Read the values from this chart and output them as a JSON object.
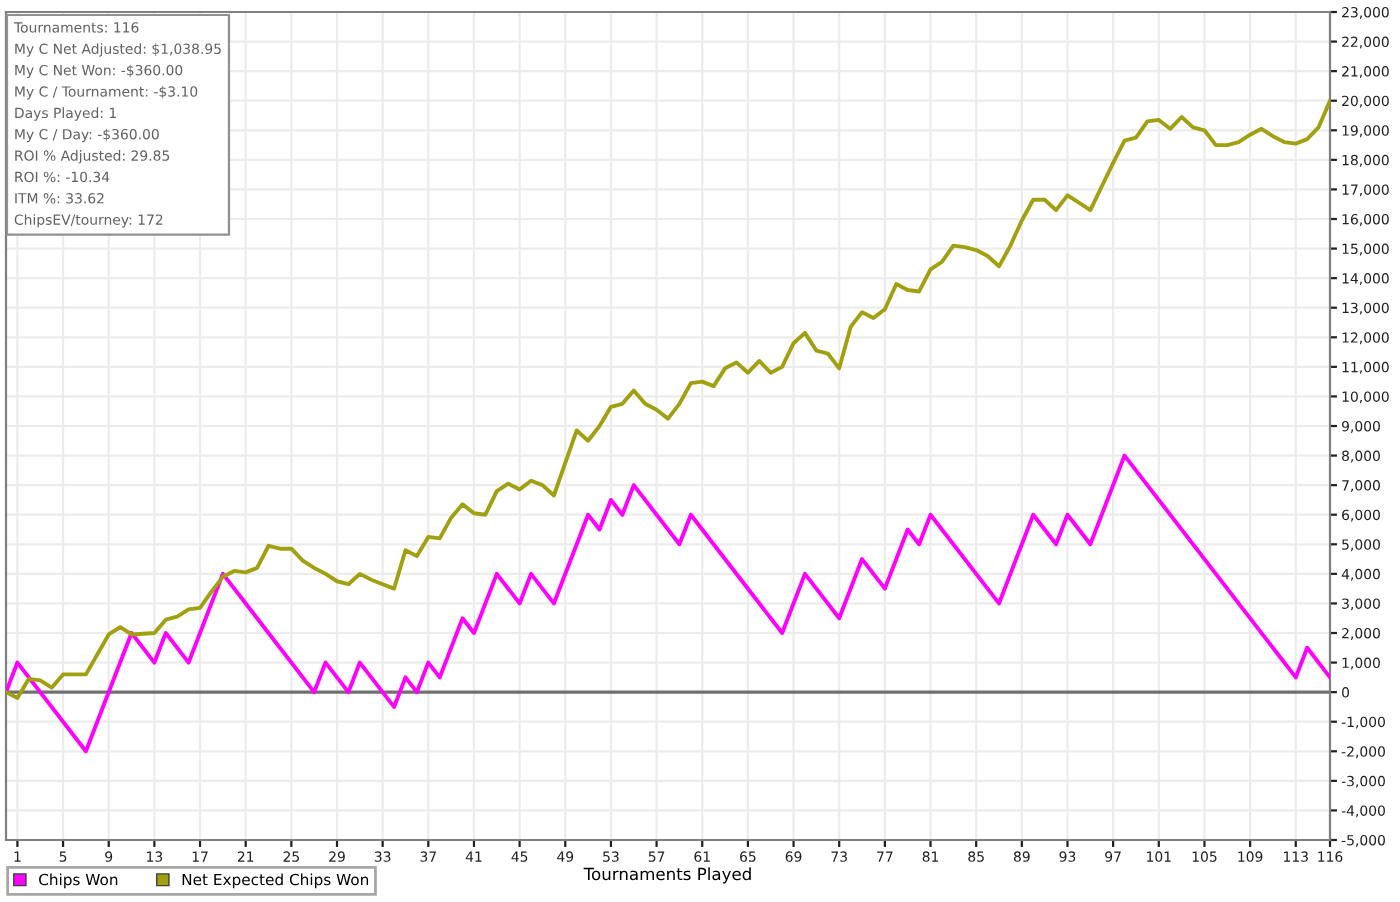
{
  "chart_data": {
    "type": "line",
    "xlabel": "Tournaments Played",
    "annotations": [
      "Tournaments: 116",
      "My C Net Adjusted: $1,038.95",
      "My C Net Won: -$360.00",
      "My C / Tournament: -$3.10",
      "Days Played: 1",
      "My C / Day: -$360.00",
      "ROI % Adjusted: 29.85",
      "ROI %: -10.34",
      "ITM %: 33.62",
      "ChipsEV/tourney: 172"
    ],
    "series": [
      {
        "name": "Chips Won",
        "color": "#ff00ff",
        "x": [
          0,
          1,
          7,
          11,
          13,
          14,
          16,
          19,
          27,
          28,
          30,
          31,
          34,
          35,
          36,
          37,
          38,
          40,
          41,
          43,
          45,
          46,
          48,
          51,
          52,
          53,
          54,
          55,
          59,
          60,
          68,
          70,
          73,
          75,
          77,
          79,
          80,
          81,
          87,
          90,
          92,
          93,
          95,
          98,
          113,
          114,
          116
        ],
        "values": [
          0,
          1000,
          -2000,
          2000,
          1000,
          2000,
          1000,
          4000,
          0,
          1000,
          0,
          1000,
          -500,
          500,
          0,
          1000,
          500,
          2500,
          2000,
          4000,
          3000,
          4000,
          3000,
          6000,
          5500,
          6500,
          6000,
          7000,
          5000,
          6000,
          2000,
          4000,
          2500,
          4500,
          3500,
          5500,
          5000,
          6000,
          3000,
          6000,
          5000,
          6000,
          5000,
          8000,
          500,
          1500,
          500
        ]
      },
      {
        "name": "Net Expected Chips Won",
        "color": "#a0a010",
        "x": [
          0,
          1,
          2,
          3,
          4,
          5,
          7,
          9,
          10,
          11,
          13,
          14,
          15,
          16,
          17,
          18,
          19,
          20,
          21,
          22,
          23,
          24,
          25,
          26,
          27,
          28,
          29,
          30,
          31,
          32,
          33,
          34,
          35,
          36,
          37,
          38,
          39,
          40,
          41,
          42,
          43,
          44,
          45,
          46,
          47,
          48,
          50,
          51,
          52,
          53,
          54,
          55,
          56,
          57,
          58,
          59,
          60,
          61,
          62,
          63,
          64,
          65,
          66,
          67,
          68,
          69,
          70,
          71,
          72,
          73,
          74,
          75,
          76,
          77,
          78,
          79,
          80,
          81,
          82,
          83,
          84,
          85,
          86,
          87,
          88,
          89,
          90,
          91,
          92,
          93,
          94,
          95,
          96,
          97,
          98,
          99,
          100,
          101,
          102,
          103,
          104,
          105,
          106,
          107,
          108,
          109,
          110,
          111,
          112,
          113,
          114,
          115,
          116
        ],
        "values": [
          0,
          -200,
          450,
          400,
          150,
          600,
          600,
          1950,
          2200,
          1950,
          2000,
          2450,
          2550,
          2800,
          2850,
          3400,
          3900,
          4100,
          4050,
          4200,
          4950,
          4850,
          4850,
          4450,
          4200,
          4000,
          3750,
          3650,
          4000,
          3800,
          3650,
          3500,
          4800,
          4600,
          5250,
          5200,
          5900,
          6350,
          6050,
          6000,
          6800,
          7050,
          6850,
          7150,
          7000,
          6650,
          8850,
          8500,
          9000,
          9650,
          9750,
          10200,
          9750,
          9550,
          9250,
          9750,
          10450,
          10500,
          10350,
          10950,
          11150,
          10800,
          11200,
          10800,
          11000,
          11800,
          12150,
          11550,
          11450,
          10950,
          12350,
          12850,
          12650,
          12950,
          13800,
          13600,
          13550,
          14300,
          14550,
          15100,
          15050,
          14950,
          14750,
          14400,
          15100,
          15950,
          16650,
          16650,
          16300,
          16800,
          16550,
          16300,
          17100,
          17900,
          18650,
          18750,
          19300,
          19350,
          19050,
          19450,
          19100,
          19000,
          18500,
          18500,
          18600,
          18850,
          19050,
          18800,
          18600,
          18550,
          18700,
          19100,
          20000
        ]
      }
    ],
    "xlim": [
      0,
      116
    ],
    "xticks": [
      1,
      5,
      9,
      13,
      17,
      21,
      25,
      29,
      33,
      37,
      41,
      45,
      49,
      53,
      57,
      61,
      65,
      69,
      73,
      77,
      81,
      85,
      89,
      93,
      97,
      101,
      105,
      109,
      113,
      116
    ],
    "ylim": [
      -5000,
      23000
    ],
    "yticks": [
      {
        "value": -5000,
        "label": "-5,000"
      },
      {
        "value": -4000,
        "label": "-4,000"
      },
      {
        "value": -3000,
        "label": "-3,000"
      },
      {
        "value": -2000,
        "label": "-2,000"
      },
      {
        "value": -1000,
        "label": "-1,000"
      },
      0,
      {
        "value": 1000,
        "label": "1,000"
      },
      {
        "value": 2000,
        "label": "2,000"
      },
      {
        "value": 3000,
        "label": "3,000"
      },
      {
        "value": 4000,
        "label": "4,000"
      },
      {
        "value": 5000,
        "label": "5,000"
      },
      {
        "value": 6000,
        "label": "6,000"
      },
      {
        "value": 7000,
        "label": "7,000"
      },
      {
        "value": 8000,
        "label": "8,000"
      },
      {
        "value": 9000,
        "label": "9,000"
      },
      {
        "value": 10000,
        "label": "10,000"
      },
      {
        "value": 11000,
        "label": "11,000"
      },
      {
        "value": 12000,
        "label": "12,000"
      },
      {
        "value": 13000,
        "label": "13,000"
      },
      {
        "value": 14000,
        "label": "14,000"
      },
      {
        "value": 15000,
        "label": "15,000"
      },
      {
        "value": 16000,
        "label": "16,000"
      },
      {
        "value": 17000,
        "label": "17,000"
      },
      {
        "value": 18000,
        "label": "18,000"
      },
      {
        "value": 19000,
        "label": "19,000"
      },
      {
        "value": 20000,
        "label": "20,000"
      },
      {
        "value": 21000,
        "label": "21,000"
      },
      {
        "value": 22000,
        "label": "22,000"
      },
      {
        "value": 23000,
        "label": "23,000"
      }
    ],
    "ref_lines": [
      {
        "axis": "y",
        "value": 0,
        "color": "#707070"
      }
    ],
    "grid": true,
    "legend": "bottom left",
    "marker": "none",
    "line_style": "solid"
  }
}
